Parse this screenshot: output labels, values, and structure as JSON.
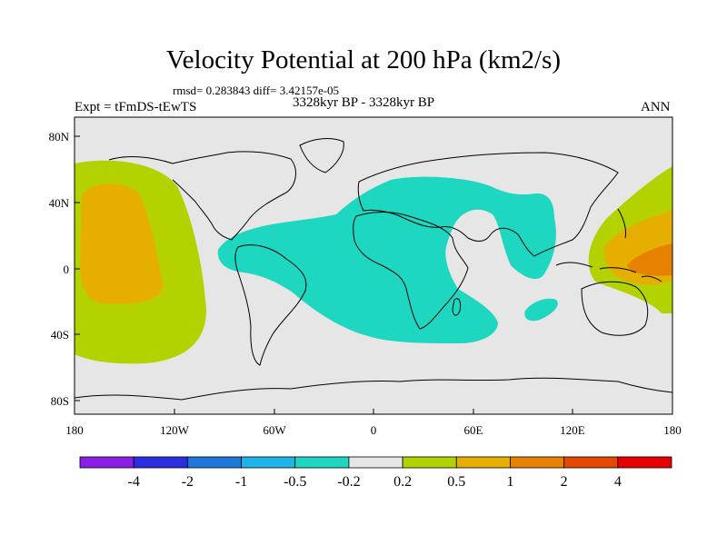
{
  "title": "Velocity Potential at 200 hPa (km2/s)",
  "stats": "rmsd= 0.283843 diff= 3.42157e-05",
  "experiment": "Expt = tFmDS-tEwTS",
  "period": "3328kyr BP - 3328kyr BP",
  "season": "ANN",
  "lat_ticks": [
    "80N",
    "40N",
    "0",
    "40S",
    "80S"
  ],
  "lon_ticks": [
    "180",
    "120W",
    "60W",
    "0",
    "60E",
    "120E",
    "180"
  ],
  "colorbar": {
    "colors": [
      "#8a1ee6",
      "#2a2ee0",
      "#1e78dc",
      "#1eb4e6",
      "#1ed7c0",
      "#e6e6e6",
      "#b4d200",
      "#e6af00",
      "#e68200",
      "#e64600",
      "#e60000"
    ],
    "labels": [
      "-4",
      "-2",
      "-1",
      "-0.5",
      "-0.2",
      "0.2",
      "0.5",
      "1",
      "2",
      "4"
    ]
  },
  "colors": {
    "background": "#e6e6e6",
    "negative_small": "#1ed7c0",
    "positive_small": "#b4d200",
    "positive_medium": "#e6af00",
    "positive_large": "#e68200",
    "coastline": "#000000"
  }
}
